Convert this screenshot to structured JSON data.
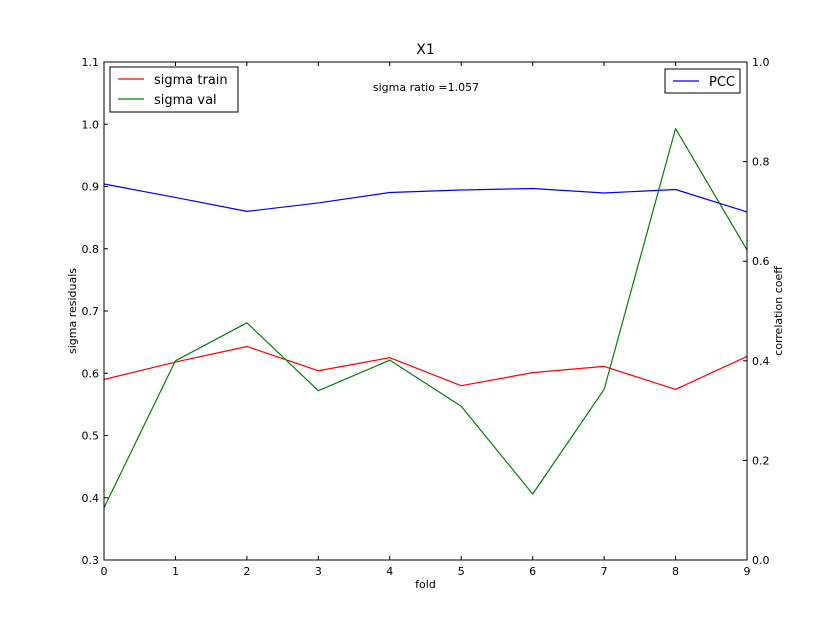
{
  "chart_data": {
    "type": "line",
    "title": "X1",
    "xlabel": "fold",
    "ylabel": "sigma residuals",
    "ylabel_right": "correlation coeff",
    "x": [
      0,
      1,
      2,
      3,
      4,
      5,
      6,
      7,
      8,
      9
    ],
    "xlim": [
      0,
      9
    ],
    "ylim": [
      0.3,
      1.1
    ],
    "ylim_right": [
      0.0,
      1.0
    ],
    "x_ticks": [
      "0",
      "1",
      "2",
      "3",
      "4",
      "5",
      "6",
      "7",
      "8",
      "9"
    ],
    "y_ticks": [
      "0.3",
      "0.4",
      "0.5",
      "0.6",
      "0.7",
      "0.8",
      "0.9",
      "1.0",
      "1.1"
    ],
    "y_ticks_right": [
      "0.0",
      "0.2",
      "0.4",
      "0.6",
      "0.8",
      "1.0"
    ],
    "annotation": "sigma ratio =1.057",
    "grid": false,
    "series": [
      {
        "name": "sigma train",
        "axis": "left",
        "color": "#ff0000",
        "values": [
          0.59,
          0.618,
          0.643,
          0.604,
          0.625,
          0.58,
          0.601,
          0.611,
          0.574,
          0.627
        ]
      },
      {
        "name": "sigma val",
        "axis": "left",
        "color": "#008000",
        "values": [
          0.384,
          0.62,
          0.681,
          0.572,
          0.621,
          0.547,
          0.406,
          0.574,
          0.993,
          0.798
        ]
      },
      {
        "name": "PCC",
        "axis": "right",
        "color": "#0000ff",
        "values": [
          0.755,
          0.728,
          0.7,
          0.717,
          0.738,
          0.743,
          0.746,
          0.737,
          0.744,
          0.699
        ]
      }
    ],
    "legends": [
      {
        "position": "top-left",
        "entries": [
          "sigma train",
          "sigma val"
        ]
      },
      {
        "position": "top-right",
        "entries": [
          "PCC"
        ]
      }
    ]
  }
}
